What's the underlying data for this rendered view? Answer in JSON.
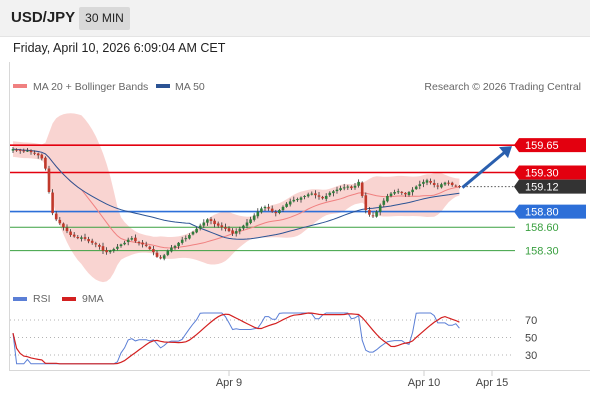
{
  "header": {
    "symbol": "USD/JPY",
    "timeframe": "30 MIN"
  },
  "timestamp": "Friday, April 10, 2026 6:09:04 AM CET",
  "credit": "Research © 2026 Trading Central",
  "colors": {
    "resistance": "#e3000f",
    "current": "#333333",
    "pivot": "#2d6fd8",
    "support": "#3aa040",
    "arrow": "#2a5fae",
    "ma20": "#f08080",
    "ma50": "#2b5394",
    "band": "#f7c6c2",
    "rsi": "#5b7fd6",
    "rsi_ma": "#d32020",
    "bull": "#2f7d3b",
    "bear": "#c0392b"
  },
  "chart_data": [
    {
      "type": "candlestick",
      "legend": [
        {
          "label": "MA 20 + Bollinger Bands",
          "color": "#f08080"
        },
        {
          "label": "MA 50",
          "color": "#2b5394"
        }
      ],
      "price_levels": [
        {
          "label": "159.65",
          "value": 159.65,
          "role": "resistance"
        },
        {
          "label": "159.30",
          "value": 159.3,
          "role": "resistance"
        },
        {
          "label": "159.12",
          "value": 159.12,
          "role": "current"
        },
        {
          "label": "158.80",
          "value": 158.8,
          "role": "pivot"
        },
        {
          "label": "158.60",
          "value": 158.6,
          "role": "support"
        },
        {
          "label": "158.30",
          "value": 158.3,
          "role": "support"
        }
      ],
      "ylim": [
        157.95,
        159.78
      ],
      "x_ticks": [
        "Apr 9",
        "Apr 10",
        "Apr 15"
      ],
      "close": [
        159.6,
        159.59,
        159.58,
        159.57,
        159.58,
        159.56,
        159.55,
        159.52,
        159.48,
        159.35,
        159.05,
        158.78,
        158.7,
        158.65,
        158.6,
        158.55,
        158.5,
        158.48,
        158.46,
        158.47,
        158.45,
        158.42,
        158.4,
        158.38,
        158.35,
        158.3,
        158.28,
        158.3,
        158.32,
        158.35,
        158.38,
        158.4,
        158.44,
        158.46,
        158.42,
        158.4,
        158.38,
        158.36,
        158.32,
        158.28,
        158.22,
        158.2,
        158.24,
        158.3,
        158.34,
        158.36,
        158.4,
        158.44,
        158.46,
        158.5,
        158.54,
        158.58,
        158.62,
        158.66,
        158.7,
        158.68,
        158.64,
        158.62,
        158.6,
        158.58,
        158.55,
        158.52,
        158.55,
        158.58,
        158.62,
        158.66,
        158.7,
        158.75,
        158.8,
        158.84,
        158.86,
        158.84,
        158.8,
        158.78,
        158.82,
        158.86,
        158.9,
        158.93,
        158.95,
        158.96,
        158.98,
        159.0,
        159.02,
        159.03,
        159.01,
        158.99,
        158.97,
        159.0,
        159.04,
        159.06,
        159.08,
        159.1,
        159.11,
        159.12,
        159.1,
        159.13,
        159.18,
        159.0,
        158.82,
        158.76,
        158.74,
        158.8,
        158.88,
        158.94,
        159.0,
        159.03,
        159.05,
        159.06,
        159.04,
        159.02,
        159.05,
        159.08,
        159.12,
        159.15,
        159.18,
        159.2,
        159.17,
        159.14,
        159.12,
        159.15,
        159.17,
        159.16,
        159.14,
        159.13,
        159.12
      ],
      "rsi": {
        "ticks": [
          70,
          50,
          30
        ],
        "legend": [
          {
            "label": "RSI",
            "color": "#5b7fd6"
          },
          {
            "label": "9MA",
            "color": "#d32020"
          }
        ]
      },
      "annotations": [
        "projection arrow up to 159.65"
      ]
    }
  ]
}
